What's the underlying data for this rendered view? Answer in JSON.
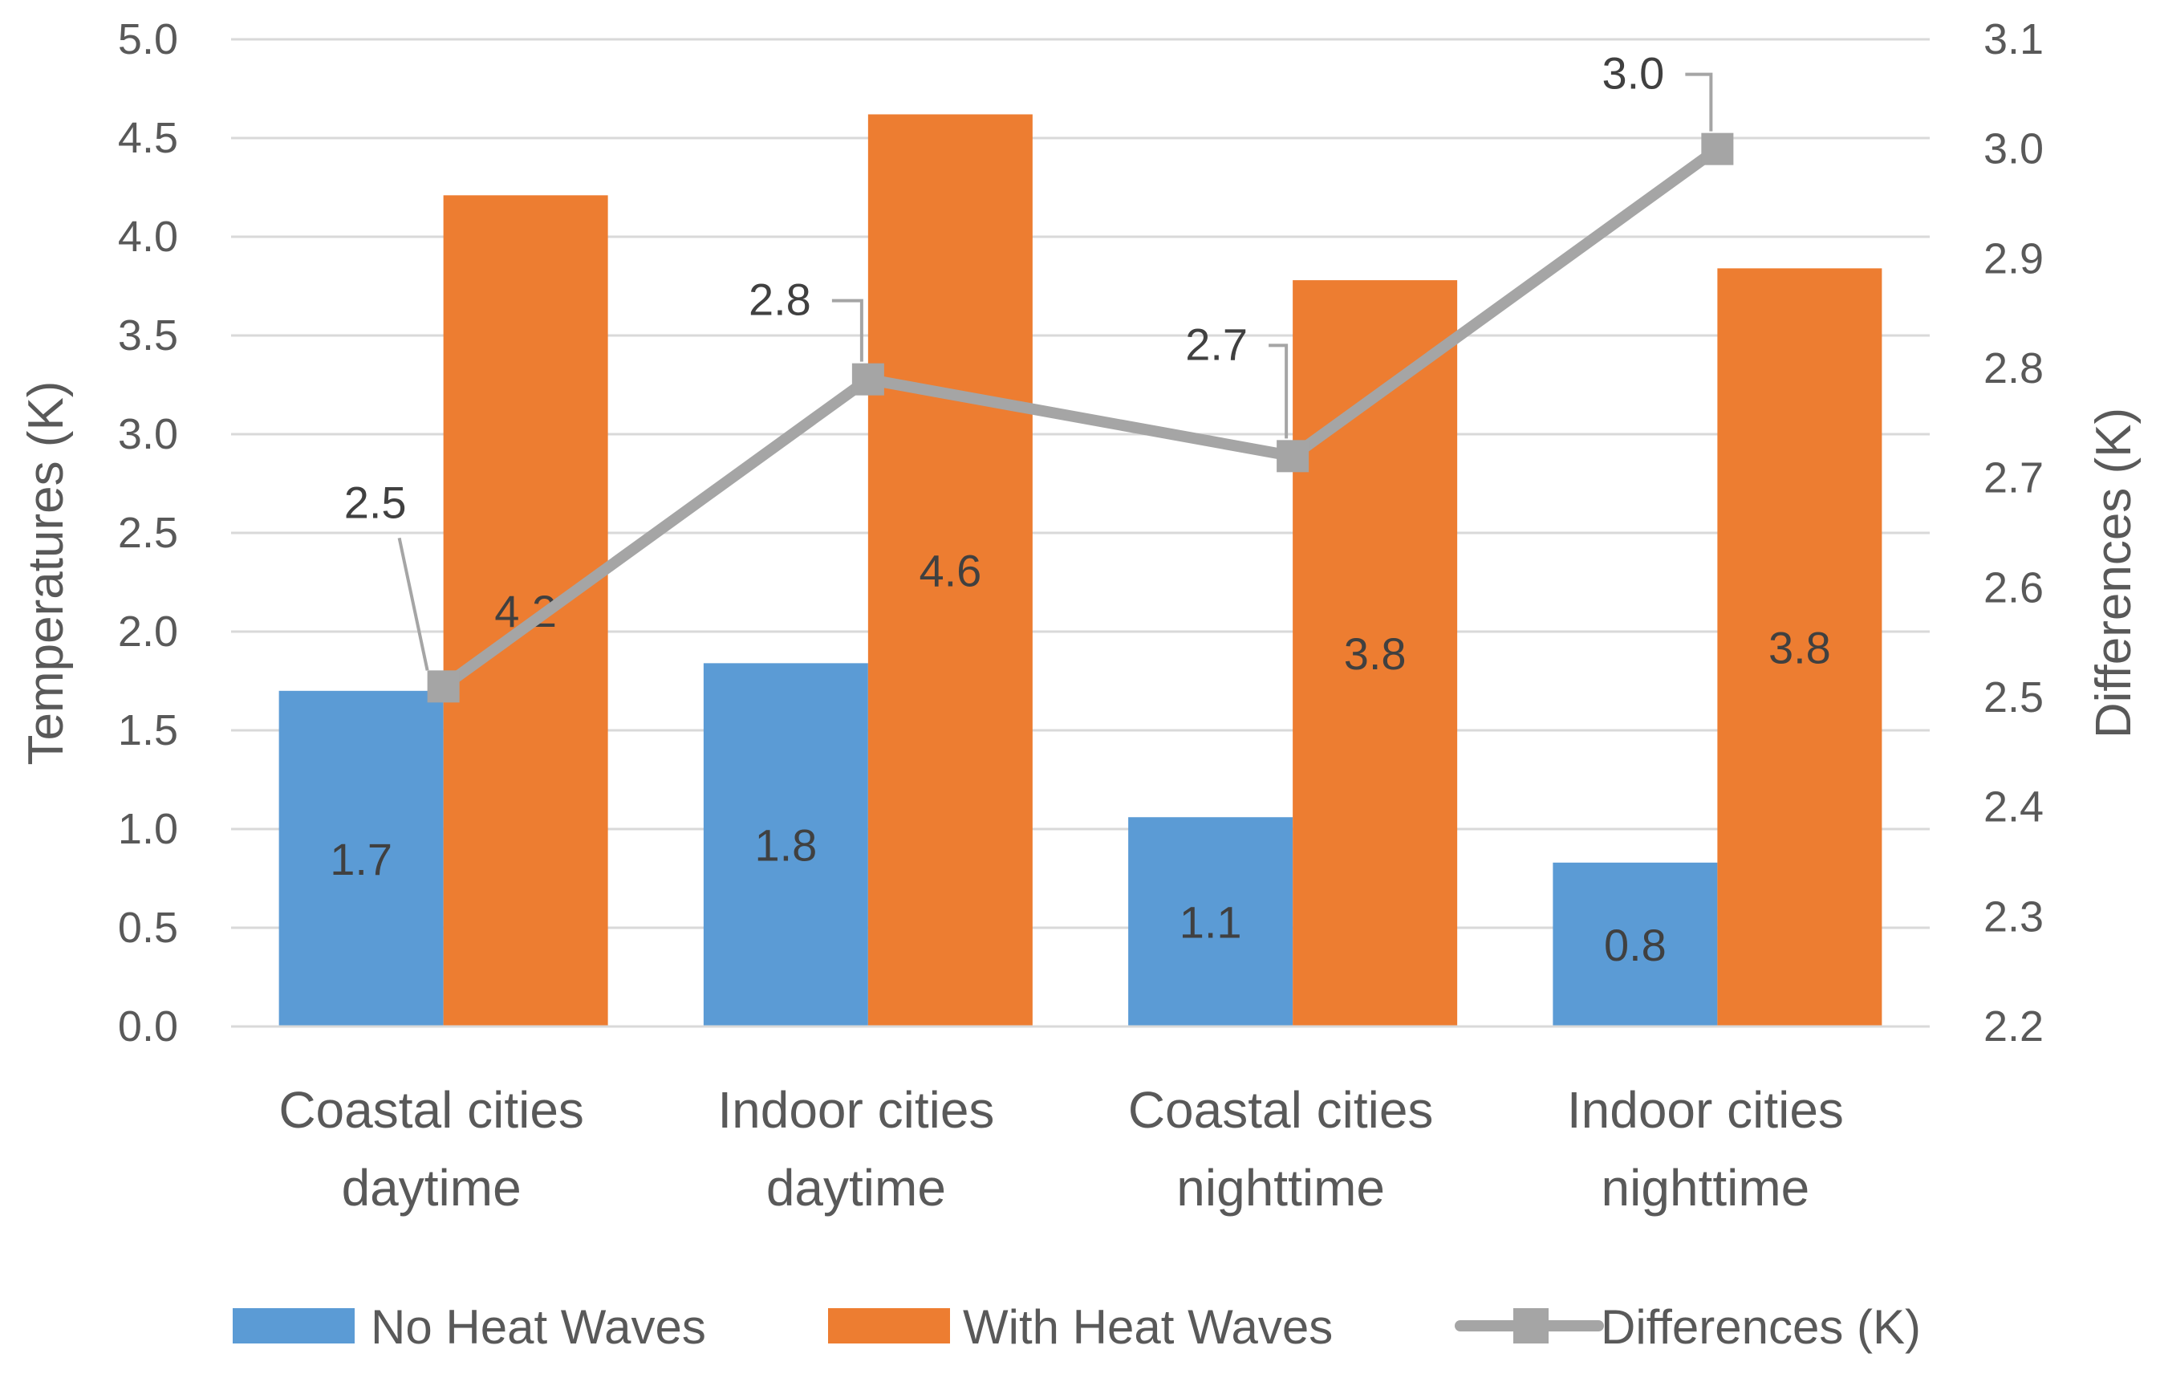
{
  "chart_data": {
    "type": "bar",
    "title": "",
    "categories": [
      [
        "Coastal cities",
        "daytime"
      ],
      [
        "Indoor cities",
        "daytime"
      ],
      [
        "Coastal cities",
        "nighttime"
      ],
      [
        "Indoor cities",
        "nighttime"
      ]
    ],
    "series": [
      {
        "name": "No Heat Waves",
        "type": "bar",
        "axis": "left",
        "color": "#5b9bd5",
        "values": [
          1.7,
          1.84,
          1.06,
          0.83
        ],
        "labels": [
          "1.7",
          "1.8",
          "1.1",
          "0.8"
        ]
      },
      {
        "name": "With Heat Waves",
        "type": "bar",
        "axis": "left",
        "color": "#ed7d31",
        "values": [
          4.21,
          4.62,
          3.78,
          3.84
        ],
        "labels": [
          "4.2",
          "4.6",
          "3.8",
          "3.8"
        ]
      },
      {
        "name": "Differences (K)",
        "type": "line",
        "axis": "right",
        "color": "#a5a5a5",
        "marker": "square",
        "values": [
          2.51,
          2.79,
          2.72,
          3.0
        ],
        "labels": [
          "2.5",
          "2.8",
          "2.7",
          "3.0"
        ]
      }
    ],
    "ylabel": "Temperatures (K)",
    "ylim": [
      0,
      5
    ],
    "yticks": [
      "0.0",
      "0.5",
      "1.0",
      "1.5",
      "2.0",
      "2.5",
      "3.0",
      "3.5",
      "4.0",
      "4.5",
      "5.0"
    ],
    "y2label": "Differences (K)",
    "y2lim": [
      2.2,
      3.1
    ],
    "y2ticks": [
      "2.2",
      "2.3",
      "2.4",
      "2.5",
      "2.6",
      "2.7",
      "2.8",
      "2.9",
      "3.0",
      "3.1"
    ],
    "grid": true,
    "legend_position": "bottom"
  }
}
